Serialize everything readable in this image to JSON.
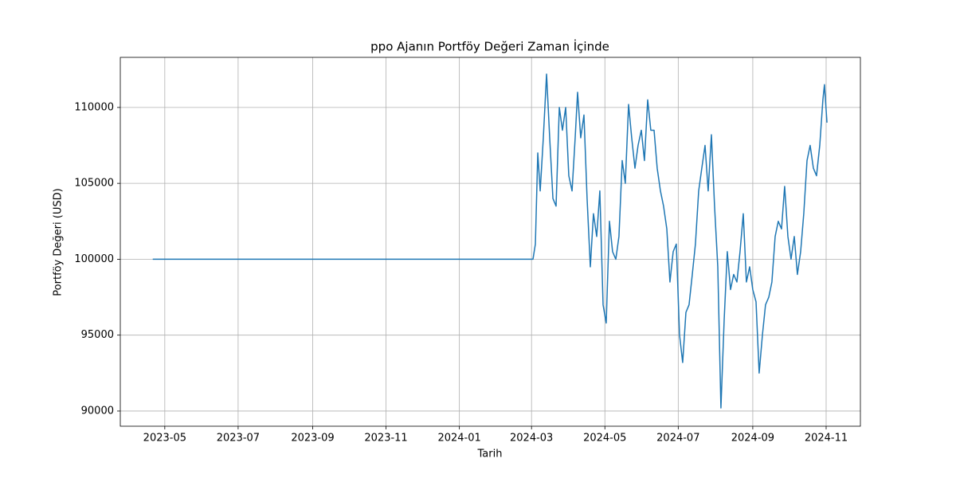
{
  "chart_data": {
    "type": "line",
    "title": "ppo Ajanın Portföy Değeri Zaman İçinde",
    "xlabel": "Tarih",
    "ylabel": "Portföy Değeri (USD)",
    "x": [
      19468,
      19783,
      19784.2,
      19786.2,
      19788.2,
      19790.2,
      19792.8,
      19795.5,
      19798.1,
      19800.8,
      19803.4,
      19806.1,
      19808.7,
      19811.4,
      19814.0,
      19816.7,
      19819.3,
      19821.3,
      19823.9,
      19826.6,
      19829.2,
      19831.9,
      19834.5,
      19837.2,
      19839.8,
      19842.5,
      19845.1,
      19847.8,
      19850.4,
      19853.1,
      19855.7,
      19858.4,
      19861.0,
      19863.7,
      19866.3,
      19869.0,
      19871.6,
      19874.3,
      19876.9,
      19879.6,
      19882.2,
      19884.9,
      19887.5,
      19890.2,
      19892.8,
      19895.5,
      19898.1,
      19900.8,
      19903.4,
      19906.1,
      19908.7,
      19911.4,
      19914.0,
      19916.7,
      19919.3,
      19922.0,
      19924.6,
      19927.3,
      19929.9,
      19932.6,
      19935.2,
      19937.9,
      19940.5,
      19943.2,
      19945.8,
      19948.5,
      19951.1,
      19953.8,
      19956.4,
      19959.1,
      19961.7,
      19964.4,
      19967.0,
      19969.7,
      19972.3,
      19975.0,
      19977.6,
      19980.3,
      19982.9,
      19985.6,
      19988.2,
      19990.9,
      19993.5,
      19996.2,
      19998.8,
      20001.5,
      20004.1,
      20006.8,
      20009.4,
      20012.1,
      20014.7,
      20017.4,
      20020.0,
      20022.7,
      20025.3,
      20026.6,
      20028.7
    ],
    "series": [
      {
        "name": "Portföy Değeri",
        "color": "#1f77b4",
        "values": [
          100000,
          100000,
          100000,
          101000,
          107000,
          104500,
          108000,
          112200,
          108000,
          104000,
          103500,
          110000,
          108500,
          110000,
          105500,
          104500,
          108000,
          111000,
          108000,
          109500,
          104000,
          99500,
          103000,
          101500,
          104500,
          97000,
          95800,
          102500,
          100500,
          100000,
          101500,
          106500,
          105000,
          110200,
          108000,
          106000,
          107500,
          108500,
          106500,
          110500,
          108500,
          108500,
          106000,
          104500,
          103500,
          102000,
          98500,
          100500,
          101000,
          95000,
          93200,
          96500,
          97000,
          99000,
          101000,
          104500,
          106000,
          107500,
          104500,
          108200,
          103500,
          99500,
          90200,
          96000,
          100500,
          98000,
          99000,
          98500,
          100500,
          103000,
          98500,
          99500,
          98000,
          97200,
          92500,
          95000,
          97000,
          97500,
          98500,
          101500,
          102500,
          102000,
          104800,
          101500,
          100000,
          101500,
          99000,
          100500,
          103000,
          106500,
          107500,
          106000,
          105500,
          107500,
          110500,
          111500,
          109000
        ]
      }
    ],
    "xlim": [
      19441,
      20056.5
    ],
    "xticks": [
      {
        "value": 19478,
        "label": "2023-05"
      },
      {
        "value": 19539,
        "label": "2023-07"
      },
      {
        "value": 19601,
        "label": "2023-09"
      },
      {
        "value": 19662,
        "label": "2023-11"
      },
      {
        "value": 19723,
        "label": "2024-01"
      },
      {
        "value": 19783,
        "label": "2024-03"
      },
      {
        "value": 19844,
        "label": "2024-05"
      },
      {
        "value": 19905,
        "label": "2024-07"
      },
      {
        "value": 19967,
        "label": "2024-09"
      },
      {
        "value": 20028,
        "label": "2024-11"
      }
    ],
    "ylim": [
      89000,
      113300
    ],
    "yticks": [
      90000,
      95000,
      100000,
      105000,
      110000
    ],
    "grid": true
  }
}
